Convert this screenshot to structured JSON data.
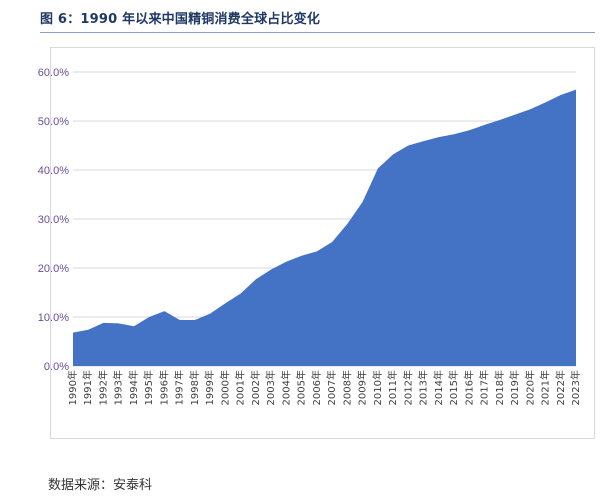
{
  "header": {
    "title": "图 6：1990 年以来中国精铜消费全球占比变化"
  },
  "footer": {
    "source": "数据来源：安泰科"
  },
  "chart_data": {
    "type": "area",
    "title": "",
    "xlabel": "",
    "ylabel": "",
    "ylim": [
      0,
      60
    ],
    "y_ticks": [
      "0.0%",
      "10.0%",
      "20.0%",
      "30.0%",
      "40.0%",
      "50.0%",
      "60.0%"
    ],
    "y_tick_values": [
      0,
      10,
      20,
      30,
      40,
      50,
      60
    ],
    "grid": true,
    "legend": "none",
    "color": "#4472c4",
    "categories": [
      "1990年",
      "1991年",
      "1992年",
      "1993年",
      "1994年",
      "1995年",
      "1996年",
      "1997年",
      "1998年",
      "1999年",
      "2000年",
      "2001年",
      "2002年",
      "2003年",
      "2004年",
      "2005年",
      "2006年",
      "2007年",
      "2008年",
      "2009年",
      "2010年",
      "2011年",
      "2012年",
      "2013年",
      "2014年",
      "2015年",
      "2016年",
      "2017年",
      "2018年",
      "2019年",
      "2020年",
      "2021年",
      "2022年",
      "2023年"
    ],
    "series": [
      {
        "values": [
          6.8,
          7.4,
          8.8,
          8.7,
          8.1,
          10.0,
          11.2,
          9.4,
          9.4,
          10.7,
          12.8,
          14.8,
          17.7,
          19.7,
          21.3,
          22.5,
          23.4,
          25.3,
          29.0,
          33.5,
          40.3,
          43.2,
          45.0,
          45.9,
          46.7,
          47.3,
          48.1,
          49.2,
          50.2,
          51.3,
          52.4,
          53.8,
          55.3,
          56.4
        ]
      }
    ]
  }
}
